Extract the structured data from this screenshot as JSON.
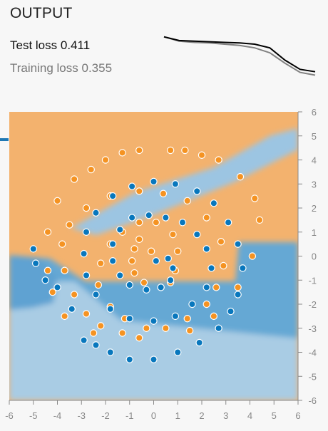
{
  "output": {
    "title": "OUTPUT",
    "test_loss_label": "Test loss",
    "test_loss_value": "0.411",
    "training_loss_label": "Training loss",
    "training_loss_value": "0.355"
  },
  "colors": {
    "orange": "#f59322",
    "blue": "#0877bd",
    "test_curve": "#000000",
    "training_curve": "#808080",
    "tick": "#888888"
  },
  "loss_chart": {
    "test": [
      0.98,
      0.92,
      0.91,
      0.9,
      0.89,
      0.88,
      0.86,
      0.8,
      0.6,
      0.45,
      0.41
    ],
    "training": [
      0.98,
      0.91,
      0.89,
      0.88,
      0.86,
      0.84,
      0.8,
      0.72,
      0.55,
      0.4,
      0.355
    ]
  },
  "chart_data": {
    "type": "scatter",
    "xlim": [
      -6,
      6
    ],
    "ylim": [
      -6,
      6
    ],
    "x_ticks": [
      -6,
      -5,
      -4,
      -3,
      -2,
      -1,
      0,
      1,
      2,
      3,
      4,
      5,
      6
    ],
    "y_ticks": [
      6,
      5,
      4,
      3,
      2,
      1,
      0,
      -1,
      -2,
      -3,
      -4,
      -5,
      -6
    ],
    "series": [
      {
        "color": "orange",
        "points": [
          [
            -0.1,
            0.2
          ],
          [
            -0.6,
            0.7
          ],
          [
            -0.8,
            0.3
          ],
          [
            -0.9,
            -0.2
          ],
          [
            -0.8,
            -0.7
          ],
          [
            -0.4,
            -1.1
          ],
          [
            0.3,
            -1.3
          ],
          [
            0.7,
            -1.1
          ],
          [
            0.9,
            -0.6
          ],
          [
            1.0,
            0.2
          ],
          [
            0.8,
            0.9
          ],
          [
            0.1,
            1.4
          ],
          [
            -0.6,
            1.4
          ],
          [
            -1.3,
            1.0
          ],
          [
            -1.8,
            0.5
          ],
          [
            -2.2,
            -0.3
          ],
          [
            -2.3,
            -1.2
          ],
          [
            -1.8,
            -2.1
          ],
          [
            -1.2,
            -2.6
          ],
          [
            -0.3,
            -3.0
          ],
          [
            0.5,
            -3.0
          ],
          [
            1.4,
            -2.6
          ],
          [
            2.2,
            -2.0
          ],
          [
            2.6,
            -1.3
          ],
          [
            2.9,
            -0.4
          ],
          [
            2.8,
            0.6
          ],
          [
            2.2,
            1.6
          ],
          [
            1.4,
            2.3
          ],
          [
            0.4,
            2.6
          ],
          [
            -0.6,
            2.7
          ],
          [
            -1.8,
            2.5
          ],
          [
            -2.8,
            2.0
          ],
          [
            -3.5,
            1.3
          ],
          [
            -3.8,
            0.5
          ],
          [
            -3.7,
            -0.6
          ],
          [
            -3.3,
            -1.6
          ],
          [
            -2.8,
            -2.4
          ],
          [
            -2.2,
            -2.9
          ],
          [
            -1.3,
            -3.2
          ],
          [
            -0.6,
            -3.4
          ],
          [
            1.5,
            -3.1
          ],
          [
            2.5,
            -2.5
          ],
          [
            3.5,
            -1.3
          ],
          [
            4.1,
            0.0
          ],
          [
            4.4,
            1.5
          ],
          [
            4.2,
            2.4
          ],
          [
            3.6,
            3.3
          ],
          [
            2.7,
            4.0
          ],
          [
            2.0,
            4.2
          ],
          [
            1.3,
            4.4
          ],
          [
            0.7,
            4.4
          ],
          [
            -0.6,
            4.4
          ],
          [
            -1.3,
            4.3
          ],
          [
            -2.0,
            4.0
          ],
          [
            -2.6,
            3.6
          ],
          [
            -3.3,
            3.2
          ],
          [
            -4.0,
            2.3
          ],
          [
            -4.4,
            1.0
          ],
          [
            -4.4,
            -0.6
          ],
          [
            -4.2,
            -1.5
          ],
          [
            -3.7,
            -2.5
          ],
          [
            -2.5,
            -3.2
          ]
        ]
      },
      {
        "color": "blue",
        "points": [
          [
            0.1,
            -0.2
          ],
          [
            0.6,
            -0.1
          ],
          [
            0.8,
            -0.5
          ],
          [
            0.7,
            -1.0
          ],
          [
            0.3,
            -1.3
          ],
          [
            -0.3,
            -1.4
          ],
          [
            -1.0,
            -1.2
          ],
          [
            -1.4,
            -0.8
          ],
          [
            -1.7,
            -0.2
          ],
          [
            -1.7,
            0.5
          ],
          [
            -1.4,
            1.1
          ],
          [
            -0.9,
            1.6
          ],
          [
            -0.2,
            1.7
          ],
          [
            0.5,
            1.6
          ],
          [
            1.2,
            1.4
          ],
          [
            1.8,
            0.9
          ],
          [
            2.2,
            0.3
          ],
          [
            2.4,
            -0.5
          ],
          [
            2.2,
            -1.3
          ],
          [
            1.6,
            -2.0
          ],
          [
            0.9,
            -2.5
          ],
          [
            0.0,
            -2.7
          ],
          [
            -1.0,
            -2.6
          ],
          [
            -1.8,
            -2.2
          ],
          [
            -2.4,
            -1.6
          ],
          [
            -2.8,
            -0.8
          ],
          [
            -2.9,
            0.1
          ],
          [
            -2.8,
            1.0
          ],
          [
            -2.4,
            1.8
          ],
          [
            -1.7,
            2.5
          ],
          [
            -0.9,
            2.9
          ],
          [
            0.0,
            3.1
          ],
          [
            0.9,
            3.0
          ],
          [
            1.8,
            2.7
          ],
          [
            2.5,
            2.2
          ],
          [
            3.1,
            1.4
          ],
          [
            3.5,
            0.5
          ],
          [
            3.7,
            -0.5
          ],
          [
            3.5,
            -1.6
          ],
          [
            3.2,
            -2.3
          ],
          [
            2.7,
            -3.0
          ],
          [
            1.9,
            -3.6
          ],
          [
            1.0,
            -4.0
          ],
          [
            0.0,
            -4.3
          ],
          [
            -1.0,
            -4.3
          ],
          [
            -1.8,
            -4.0
          ],
          [
            -2.4,
            -3.7
          ],
          [
            -2.9,
            -3.5
          ],
          [
            -3.4,
            -2.2
          ],
          [
            -4.0,
            -1.3
          ],
          [
            -4.5,
            -1.0
          ],
          [
            -4.9,
            -0.3
          ],
          [
            -5.0,
            0.3
          ]
        ]
      }
    ]
  }
}
